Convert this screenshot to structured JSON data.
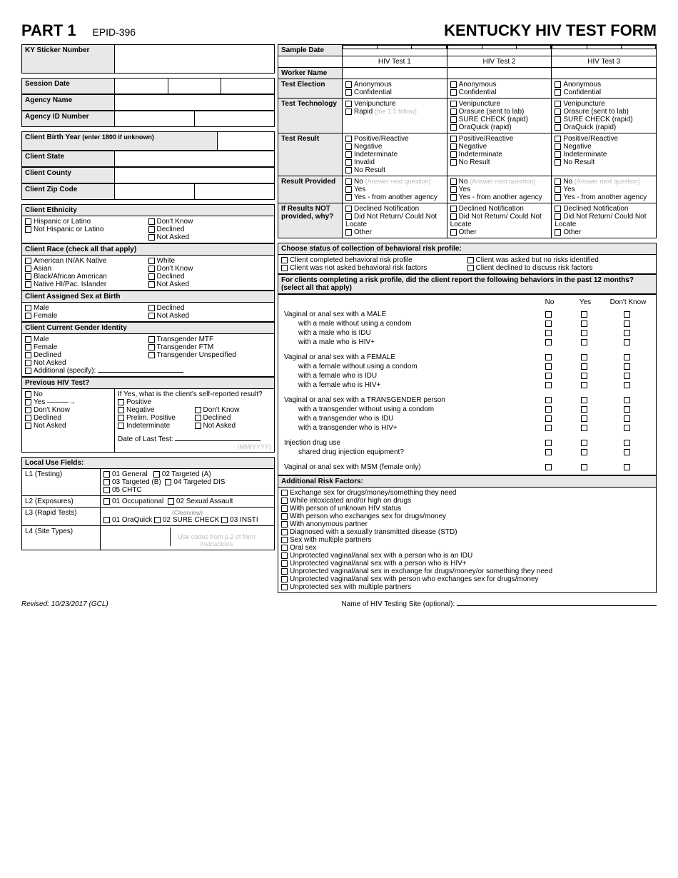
{
  "header": {
    "part": "PART 1",
    "epid": "EPID-396",
    "title": "KENTUCKY HIV TEST FORM"
  },
  "left": {
    "sticker": "KY Sticker Number",
    "session_date": "Session Date",
    "agency_name": "Agency Name",
    "agency_id": "Agency ID Number",
    "birth_year": "Client Birth Year",
    "birth_year_hint": "(enter 1800 if unknown)",
    "state": "Client State",
    "county": "Client County",
    "zip": "Client Zip Code",
    "ethnicity_hdr": "Client Ethnicity",
    "ethnicity_opts": [
      "Hispanic or Latino",
      "Not Hispanic or Latino",
      "Don't Know",
      "Declined",
      "Not Asked"
    ],
    "race_hdr": "Client Race  (check all that apply)",
    "race_opts": [
      "American IN/AK Native",
      "Asian",
      "Black/African American",
      "Native HI/Pac. Islander",
      "White",
      "Don't Know",
      "Declined",
      "Not Asked"
    ],
    "sex_hdr": "Client Assigned Sex at Birth",
    "sex_opts": [
      "Male",
      "Female",
      "Declined",
      "Not Asked"
    ],
    "gender_hdr": "Client Current Gender Identity",
    "gender_opts": [
      "Male",
      "Female",
      "Declined",
      "Not Asked",
      "Transgender MTF",
      "Transgender FTM",
      "Transgender Unspecified"
    ],
    "gender_add": "Additional (specify):",
    "prev_hdr": "Previous HIV Test?",
    "prev_opts": [
      "No",
      "Yes",
      "Don't Know",
      "Declined",
      "Not Asked"
    ],
    "prev_q": "If Yes, what is the client's self-reported result?",
    "prev_result_opts": [
      "Positive",
      "Negative",
      "Prelim. Positive",
      "Indeterminate",
      "Don't Know",
      "Declined",
      "Not Asked"
    ],
    "date_last": "Date of Last Test:",
    "date_fmt": "(MM/YYYY)",
    "local_hdr": "Local Use Fields:",
    "l1": "L1  (Testing)",
    "l1_opts": [
      "01 General",
      "02 Targeted (A)",
      "03 Targeted (B)",
      "04 Targeted DIS",
      "05 CHTC"
    ],
    "l2": "L2  (Exposures)",
    "l2_opts": [
      "01 Occupational",
      "02 Sexual Assault"
    ],
    "l3": "L3  (Rapid Tests)",
    "l3_cv": "(Clearview)",
    "l3_opts": [
      "01 OraQuick",
      "02 SURE CHECK",
      "03 INSTI"
    ],
    "l4": "L4  (Site Types)",
    "l4_hint": "Use codes from p.2 of form instructions"
  },
  "tests": {
    "sample_date": "Sample Date",
    "cols": [
      "HIV Test 1",
      "HIV Test 2",
      "HIV Test 3"
    ],
    "worker": "Worker Name",
    "election": "Test Election",
    "election_opts": [
      "Anonymous",
      "Confidential"
    ],
    "tech": "Test Technology",
    "tech1": [
      "Venipuncture",
      "Rapid"
    ],
    "tech1_hint": "(the 1:1 follow)",
    "tech23": [
      "Venipuncture",
      "Orasure (sent to lab)",
      "SURE CHECK (rapid)",
      "OraQuick (rapid)"
    ],
    "result": "Test Result",
    "result1": [
      "Positive/Reactive",
      "Negative",
      "Indeterminate",
      "Invalid",
      "No Result"
    ],
    "result23": [
      "Positive/Reactive",
      "Negative",
      "Indeterminate",
      "No Result"
    ],
    "provided": "Result Provided",
    "provided_opts": [
      "No",
      "Yes",
      "Yes - from another agency"
    ],
    "provided_hint": "(Answer next question)",
    "notprov": "If Results NOT provided, why?",
    "notprov_opts": [
      "Declined Notification",
      "Did Not Return/ Could Not Locate",
      "Other"
    ]
  },
  "risk": {
    "status_hdr": "Choose status of collection of behavioral risk profile:",
    "status_opts": [
      "Client completed behavioral risk profile",
      "Client was not asked behavioral risk factors",
      "Client was asked but no risks identified",
      "Client declined to discuss risk factors"
    ],
    "profile_hdr": "For clients completing a risk profile, did the client report the following behaviors in the past 12 months? (select all that apply)",
    "cols": [
      "No",
      "Yes",
      "Don't Know"
    ],
    "groups": [
      {
        "rows": [
          "Vaginal or anal sex with a MALE",
          "   with a male without using a condom",
          "   with a male who is IDU",
          "   with a male who is HIV+"
        ]
      },
      {
        "rows": [
          "Vaginal or anal sex with a FEMALE",
          "   with a female without using a condom",
          "   with a female who is IDU",
          "   with a female who is HIV+"
        ]
      },
      {
        "rows": [
          "Vaginal or anal sex with a TRANSGENDER person",
          "   with a transgender without using a condom",
          "   with a transgender who is IDU",
          "   with a transgender who is HIV+"
        ]
      },
      {
        "rows": [
          "Injection drug use",
          "   shared drug injection equipment?"
        ]
      },
      {
        "rows": [
          "Vaginal or anal sex with MSM (female only)"
        ]
      }
    ],
    "add_hdr": "Additional Risk Factors:",
    "add_opts": [
      "Exchange sex for drugs/money/something they need",
      "While intoxicated and/or high on drugs",
      "With person of unknown HIV status",
      "With person who exchanges sex for drugs/money",
      "With anonymous partner",
      "Diagnosed with a sexually transmitted disease (STD)",
      "Sex with multiple partners",
      "Oral sex",
      "Unprotected vaginal/anal sex with a person who is an IDU",
      "Unprotected vaginal/anal sex with a person who is HIV+",
      "Unprotected vaginal/anal sex in exchange for drugs/money/or something they need",
      "Unprotected vaginal/anal sex with person who exchanges sex for drugs/money",
      "Unprotected sex with multiple partners"
    ]
  },
  "footer": {
    "revised": "Revised: 10/23/2017 (GCL)",
    "site": "Name of HIV Testing Site (optional):"
  }
}
